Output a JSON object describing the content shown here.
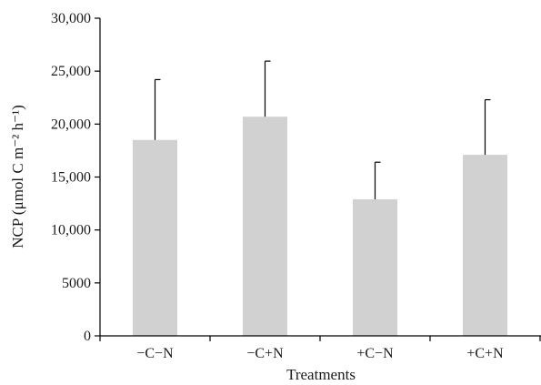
{
  "chart_data": {
    "type": "bar",
    "title": "",
    "xlabel": "Treatments",
    "ylabel": "NCP (μmol C m⁻² h⁻¹)",
    "categories": [
      "−C−N",
      "−C+N",
      "+C−N",
      "+C+N"
    ],
    "values": [
      18500,
      20700,
      12900,
      17100
    ],
    "error_upper": [
      5700,
      5250,
      3500,
      5200
    ],
    "ylim": [
      0,
      30000
    ],
    "yticks": [
      0,
      5000,
      10000,
      15000,
      20000,
      25000,
      30000
    ],
    "ytick_labels": [
      "0",
      "5000",
      "10,000",
      "15,000",
      "20,000",
      "25,000",
      "30,000"
    ],
    "bar_color": "#d1d1d1",
    "grid": false,
    "legend": "none"
  }
}
